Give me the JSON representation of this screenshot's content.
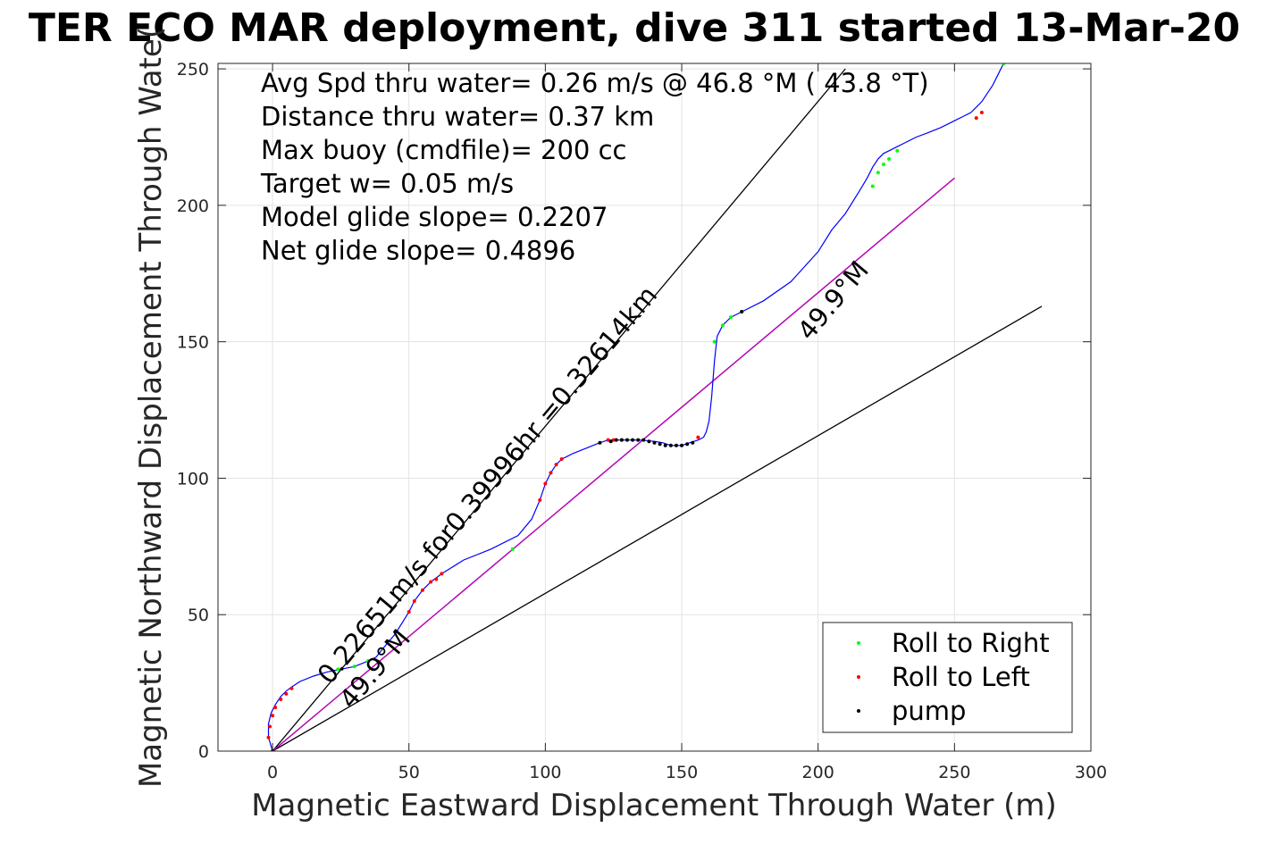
{
  "chart_data": {
    "type": "line",
    "title": "TER ECO MAR deployment, dive 311 started 13-Mar-20",
    "xlabel": "Magnetic Eastward Displacement Through Water (m)",
    "ylabel": "Magnetic Northward Displacement Through Wate(",
    "xlim": [
      -20,
      300
    ],
    "ylim": [
      0,
      252
    ],
    "xticks": [
      0,
      50,
      100,
      150,
      200,
      250,
      300
    ],
    "yticks": [
      0,
      50,
      100,
      150,
      200,
      250
    ],
    "grid": true,
    "legend_position": "bottom-right",
    "annotations": [
      "Avg Spd thru water=  0.26 m/s @  46.8 °M ( 43.8 °T)",
      "Distance thru water=  0.37 km",
      "Max buoy (cmdfile)= 200 cc",
      "Target w= 0.05 m/s",
      "Model glide slope= 0.2207",
      "Net glide slope= 0.4896"
    ],
    "slanted_labels": [
      {
        "text": "0.22651m/s for0.39996hr =0.32614km",
        "x": 21,
        "y": 24,
        "angle": 49.9
      },
      {
        "text": "49.9°M",
        "x": 29,
        "y": 15,
        "angle": 49.9
      },
      {
        "text": "49.9°M",
        "x": 197,
        "y": 150,
        "angle": 49.9
      }
    ],
    "reference_lines": [
      {
        "from": [
          0,
          0
        ],
        "to": [
          210,
          250
        ],
        "color": "#000000"
      },
      {
        "from": [
          0,
          0
        ],
        "to": [
          282,
          163
        ],
        "color": "#000000"
      },
      {
        "from": [
          0,
          0
        ],
        "to": [
          250,
          210
        ],
        "color": "#000000"
      },
      {
        "from": [
          0,
          0
        ],
        "to": [
          250,
          210
        ],
        "color": "#c800c8"
      }
    ],
    "series": [
      {
        "name": "track",
        "color": "#0000ff",
        "x": [
          0,
          -1.5,
          -1.5,
          -0.5,
          1,
          3,
          5,
          7,
          10,
          15,
          20,
          25,
          30,
          35,
          38,
          40,
          45,
          50,
          52,
          55,
          58,
          62,
          70,
          80,
          90,
          95,
          98,
          100,
          102,
          104,
          106,
          110,
          115,
          120,
          123,
          126,
          130,
          135,
          140,
          143,
          146,
          150,
          153,
          156,
          158,
          159,
          160,
          161,
          162,
          163,
          165,
          168,
          172,
          180,
          190,
          200,
          205,
          210,
          215,
          218,
          220,
          222,
          224,
          226,
          229,
          232,
          236,
          240,
          245,
          250,
          253,
          256,
          258,
          260,
          262,
          264,
          266,
          268
        ],
        "y": [
          0,
          5,
          10,
          14,
          17,
          20,
          22,
          23.5,
          25.5,
          27.5,
          29,
          30,
          31,
          33,
          34.5,
          37,
          43,
          51,
          55,
          59,
          62,
          65,
          70,
          74,
          79,
          85,
          92,
          98,
          102,
          105,
          107,
          109,
          111,
          113,
          114,
          114,
          114,
          114,
          113.5,
          113,
          112,
          112,
          113,
          114,
          115,
          117,
          121,
          130,
          143,
          152,
          156,
          159,
          161,
          165,
          172,
          183,
          191,
          197,
          205,
          210,
          214,
          217,
          219,
          220,
          221.5,
          223,
          225,
          226.5,
          228.5,
          231,
          232.5,
          234,
          236,
          238,
          241,
          244,
          248,
          252
        ]
      },
      {
        "name": "Roll to Right",
        "color": "#00ff00",
        "x": [
          24,
          30,
          35,
          88,
          162,
          165,
          168,
          172,
          220,
          222,
          224,
          226,
          229,
          268
        ],
        "y": [
          30,
          31,
          33,
          74,
          150,
          156,
          159,
          161,
          207,
          212,
          215,
          217,
          220,
          252
        ]
      },
      {
        "name": "Roll to Left",
        "color": "#ff0000",
        "x": [
          -1.5,
          -1,
          0,
          1,
          3,
          5,
          7,
          50,
          52,
          55,
          58,
          60,
          62,
          98,
          100,
          102,
          104,
          106,
          123,
          125,
          128,
          156,
          258,
          260
        ],
        "y": [
          5,
          9,
          13,
          16,
          19,
          21,
          23,
          51,
          55,
          59,
          62,
          63,
          65,
          92,
          98,
          102,
          105,
          107,
          114,
          114,
          114,
          115,
          232,
          234
        ]
      },
      {
        "name": "pump",
        "color": "#000000",
        "x": [
          0,
          120,
          124,
          126,
          128,
          130,
          132,
          134,
          136,
          138,
          140,
          142,
          144,
          146,
          148,
          150,
          152,
          154,
          172
        ],
        "y": [
          0,
          113,
          113.5,
          114,
          114,
          114,
          114,
          114,
          114,
          113.5,
          113,
          112.5,
          112,
          112,
          112,
          112,
          112.5,
          113,
          161
        ]
      }
    ],
    "legend": [
      {
        "label": "Roll to Right",
        "color": "#00ff00"
      },
      {
        "label": "Roll to Left",
        "color": "#ff0000"
      },
      {
        "label": "pump",
        "color": "#000000"
      }
    ]
  }
}
